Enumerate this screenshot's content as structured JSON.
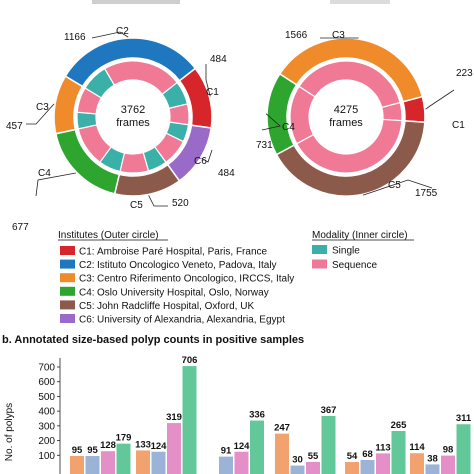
{
  "chart_data": [
    {
      "type": "pie",
      "subtype": "donut",
      "center_label": {
        "value": "3762",
        "unit": "frames"
      },
      "outer_ring": [
        {
          "label": "C1",
          "value": 484
        },
        {
          "label": "C6",
          "value": 484
        },
        {
          "label": "C5",
          "value": 520
        },
        {
          "label": "C4",
          "value": 677
        },
        {
          "label": "C3",
          "value": 457
        },
        {
          "label": "C2",
          "value": 1166
        }
      ],
      "inner_ring": [
        {
          "center": "C1",
          "single": 258,
          "sequence": 226
        },
        {
          "center": "C6",
          "single": 190,
          "sequence": 294
        },
        {
          "center": "C5",
          "single": 210,
          "sequence": 310
        },
        {
          "center": "C4",
          "single": 240,
          "sequence": 437
        },
        {
          "center": "C3",
          "single": 180,
          "sequence": 277
        },
        {
          "center": "C2",
          "single": 300,
          "sequence": 866
        }
      ]
    },
    {
      "type": "pie",
      "subtype": "donut",
      "center_label": {
        "value": "4275",
        "unit": "frames"
      },
      "outer_ring": [
        {
          "label": "C1",
          "value": 223
        },
        {
          "label": "C5",
          "value": 1755
        },
        {
          "label": "C4",
          "value": 731
        },
        {
          "label": "C3",
          "value": 1566
        }
      ],
      "inner_ring": [
        {
          "center": "C1",
          "sequence": 223
        },
        {
          "center": "C5",
          "sequence": 1755
        },
        {
          "center": "C4",
          "sequence": 731
        },
        {
          "center": "C3",
          "sequence": 1566
        }
      ]
    },
    {
      "type": "bar",
      "title": "b. Annotated size-based polyp counts in positive samples",
      "ylabel": "No. of polyps",
      "ylim": [
        0,
        750
      ],
      "yticks": [
        100,
        200,
        300,
        400,
        500,
        600,
        700
      ],
      "groups": [
        {
          "values": [
            95,
            95,
            128,
            179
          ],
          "colors": [
            "#f2a26e",
            "#9cb3d8",
            "#e58fc9",
            "#62c89a"
          ]
        },
        {
          "values": [
            133,
            124,
            319,
            706
          ],
          "colors": [
            "#f2a26e",
            "#9cb3d8",
            "#e58fc9",
            "#62c89a"
          ]
        },
        {
          "values": [
            91,
            124,
            336
          ],
          "colors": [
            "#9cb3d8",
            "#e58fc9",
            "#62c89a"
          ]
        },
        {
          "values": [
            247,
            30,
            55,
            367
          ],
          "colors": [
            "#f2a26e",
            "#9cb3d8",
            "#e58fc9",
            "#62c89a"
          ]
        },
        {
          "values": [
            54,
            68,
            113,
            265
          ],
          "colors": [
            "#f2a26e",
            "#9cb3d8",
            "#e58fc9",
            "#62c89a"
          ]
        },
        {
          "values": [
            114,
            38,
            98,
            311
          ],
          "colors": [
            "#f2a26e",
            "#9cb3d8",
            "#e58fc9",
            "#62c89a"
          ]
        }
      ]
    }
  ],
  "legend_institutes": {
    "title": "Institutes (Outer circle)",
    "items": [
      {
        "code": "C1:",
        "name": "Ambroise Paré Hospital, Paris, France",
        "color": "#d7262b"
      },
      {
        "code": "C2:",
        "name": "Istituto Oncologico Veneto, Padova, Italy",
        "color": "#1f77c0"
      },
      {
        "code": "C3:",
        "name": "Centro Riferimento Oncologico, IRCCS, Italy",
        "color": "#f08b2c"
      },
      {
        "code": "C4:",
        "name": "Oslo University Hospital, Oslo, Norway",
        "color": "#2ea52e"
      },
      {
        "code": "C5:",
        "name": "John Radcliffe Hospital, Oxford, UK",
        "color": "#8c5a4a"
      },
      {
        "code": "C6:",
        "name": "University of Alexandria, Alexandria, Egypt",
        "color": "#9a6ac8"
      }
    ]
  },
  "legend_modality": {
    "title": "Modality (Inner circle)",
    "items": [
      {
        "name": "Single",
        "color": "#3ab0a8"
      },
      {
        "name": "Sequence",
        "color": "#f07a96"
      }
    ]
  },
  "colors": {
    "C1": "#d7262b",
    "C2": "#1f77c0",
    "C3": "#f08b2c",
    "C4": "#2ea52e",
    "C5": "#8c5a4a",
    "C6": "#9a6ac8",
    "single": "#3ab0a8",
    "sequence": "#f07a96"
  }
}
